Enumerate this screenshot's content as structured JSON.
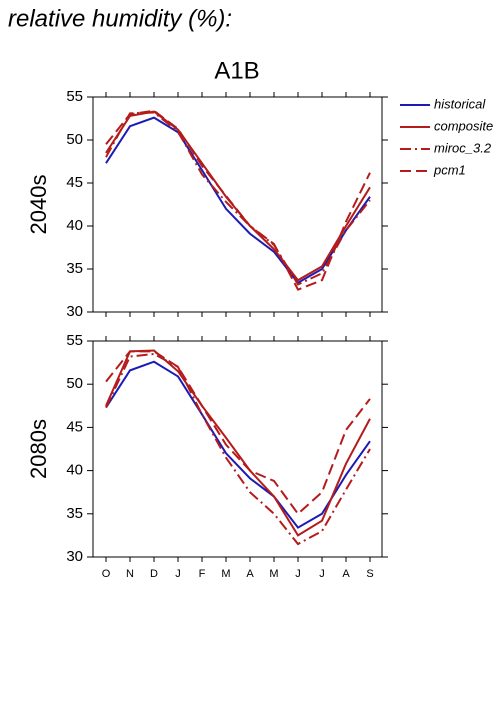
{
  "heading": "relative humidity (%):",
  "chart_data": [
    {
      "type": "line",
      "title": "A1B",
      "ylabel": "2040s",
      "ylim": [
        30,
        55
      ],
      "yticks": [
        30,
        35,
        40,
        45,
        50,
        55
      ],
      "series": [
        {
          "name": "historical",
          "color": "#1c1cb4",
          "linestyle": "solid",
          "values": [
            47.3,
            51.6,
            52.6,
            50.9,
            46.5,
            42,
            39.1,
            37,
            33.4,
            35,
            39.5,
            43.4
          ]
        },
        {
          "name": "composite",
          "color": "#b41c1c",
          "linestyle": "solid",
          "values": [
            48.5,
            52.8,
            53.3,
            51.2,
            47.3,
            43.4,
            40,
            37.3,
            33.7,
            35.3,
            40,
            44.5
          ]
        },
        {
          "name": "miroc_3.2",
          "color": "#b41c1c",
          "linestyle": "dashdot",
          "values": [
            48,
            53.1,
            53.2,
            51,
            46,
            42.8,
            40,
            37.8,
            33.2,
            34.5,
            39.5,
            43
          ]
        },
        {
          "name": "pcm1",
          "color": "#b41c1c",
          "linestyle": "dashed",
          "values": [
            49.5,
            53,
            53.4,
            51.3,
            47,
            43.5,
            40,
            37.9,
            32.6,
            33.7,
            40.5,
            46.2
          ]
        }
      ]
    },
    {
      "type": "line",
      "ylabel": "2080s",
      "categories": [
        "O",
        "N",
        "D",
        "J",
        "F",
        "M",
        "A",
        "M",
        "J",
        "J",
        "A",
        "S"
      ],
      "ylim": [
        30,
        55
      ],
      "yticks": [
        30,
        35,
        40,
        45,
        50,
        55
      ],
      "series": [
        {
          "color": "#1c1cb4",
          "linestyle": "solid",
          "values": [
            47.3,
            51.6,
            52.6,
            50.9,
            46.5,
            42,
            39.1,
            37,
            33.4,
            35,
            39.5,
            43.4
          ]
        },
        {
          "color": "#b41c1c",
          "linestyle": "solid",
          "values": [
            47.5,
            53.8,
            53.9,
            51.5,
            47.5,
            43.8,
            40,
            37,
            32.5,
            34.2,
            40.8,
            46
          ]
        },
        {
          "color": "#b41c1c",
          "linestyle": "dashdot",
          "values": [
            47.3,
            53.2,
            53.5,
            52,
            46.5,
            41.5,
            37.5,
            35,
            31.5,
            33,
            37.8,
            42.5
          ]
        },
        {
          "color": "#b41c1c",
          "linestyle": "dashed",
          "values": [
            50.3,
            53.8,
            53.8,
            52,
            47.5,
            43,
            40,
            38.8,
            35,
            37.5,
            44.7,
            48.3
          ]
        }
      ]
    }
  ]
}
